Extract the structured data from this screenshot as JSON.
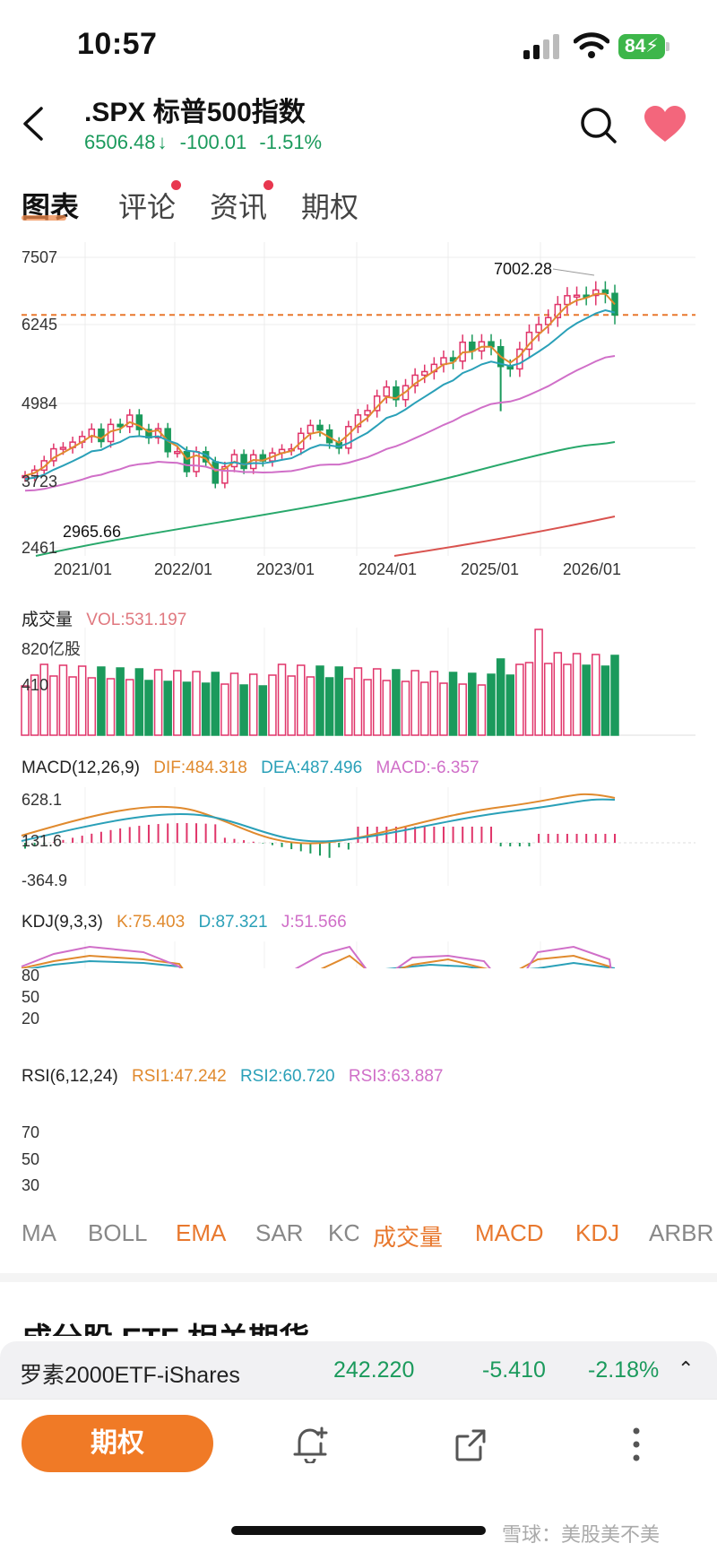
{
  "status_bar": {
    "time": "10:57",
    "battery": "84"
  },
  "header": {
    "title": ".SPX  标普500指数",
    "price": "6506.48",
    "change": "-100.01",
    "change_pct": "-1.51%",
    "direction_icon": "arrow-down-icon"
  },
  "tabs": [
    {
      "label": "图表",
      "active": true,
      "dot": false
    },
    {
      "label": "评论",
      "active": false,
      "dot": true
    },
    {
      "label": "资讯",
      "active": false,
      "dot": true
    },
    {
      "label": "期权",
      "active": false,
      "dot": false
    }
  ],
  "colors": {
    "up": "#e0356a",
    "down": "#1b9a5c",
    "ema1": "#e08a2e",
    "ema2": "#2aa0b8",
    "ema3": "#d06fc8",
    "ema4": "#28a86b",
    "ema5": "#d9534f",
    "ref_line": "#e8782e"
  },
  "price_chart": {
    "y_ticks": [
      "7507",
      "6245",
      "4984",
      "3723",
      "2461"
    ],
    "x_ticks": [
      "2021/01",
      "2022/01",
      "2023/01",
      "2024/01",
      "2025/01",
      "2026/01"
    ],
    "high_label": "7002.28",
    "low_label": "2965.66",
    "ref_value": 6506.48
  },
  "volume": {
    "title": "成交量",
    "vol_label": "VOL:531.197",
    "y_ticks": [
      "820亿股",
      "410"
    ]
  },
  "macd": {
    "title": "MACD(12,26,9)",
    "dif": "DIF:484.318",
    "dea": "DEA:487.496",
    "macd": "MACD:-6.357",
    "y_ticks": [
      "628.1",
      "131.6",
      "-364.9"
    ]
  },
  "kdj": {
    "title": "KDJ(9,3,3)",
    "k": "K:75.403",
    "d": "D:87.321",
    "j": "J:51.566",
    "y_ticks": [
      "80",
      "50",
      "20"
    ]
  },
  "rsi": {
    "title": "RSI(6,12,24)",
    "rsi1": "RSI1:47.242",
    "rsi2": "RSI2:60.720",
    "rsi3": "RSI3:63.887",
    "y_ticks": [
      "70",
      "50",
      "30"
    ]
  },
  "indicator_selector": [
    {
      "label": "MA",
      "on": false
    },
    {
      "label": "BOLL",
      "on": false
    },
    {
      "label": "EMA",
      "on": true
    },
    {
      "label": "SAR",
      "on": false
    },
    {
      "label": "KC",
      "on": false
    },
    {
      "label": "成交量",
      "on": true
    },
    {
      "label": "MACD",
      "on": true
    },
    {
      "label": "KDJ",
      "on": true
    },
    {
      "label": "ARBR",
      "on": false
    }
  ],
  "section_cut_text": "成分股    ETF    相关期货",
  "ticker": {
    "name": "罗素2000ETF-iShares",
    "price": "242.220",
    "change": "-5.410",
    "change_pct": "-2.18%"
  },
  "bottom_bar": {
    "options_button": "期权",
    "watermark": "雪球：美股美不美"
  }
}
